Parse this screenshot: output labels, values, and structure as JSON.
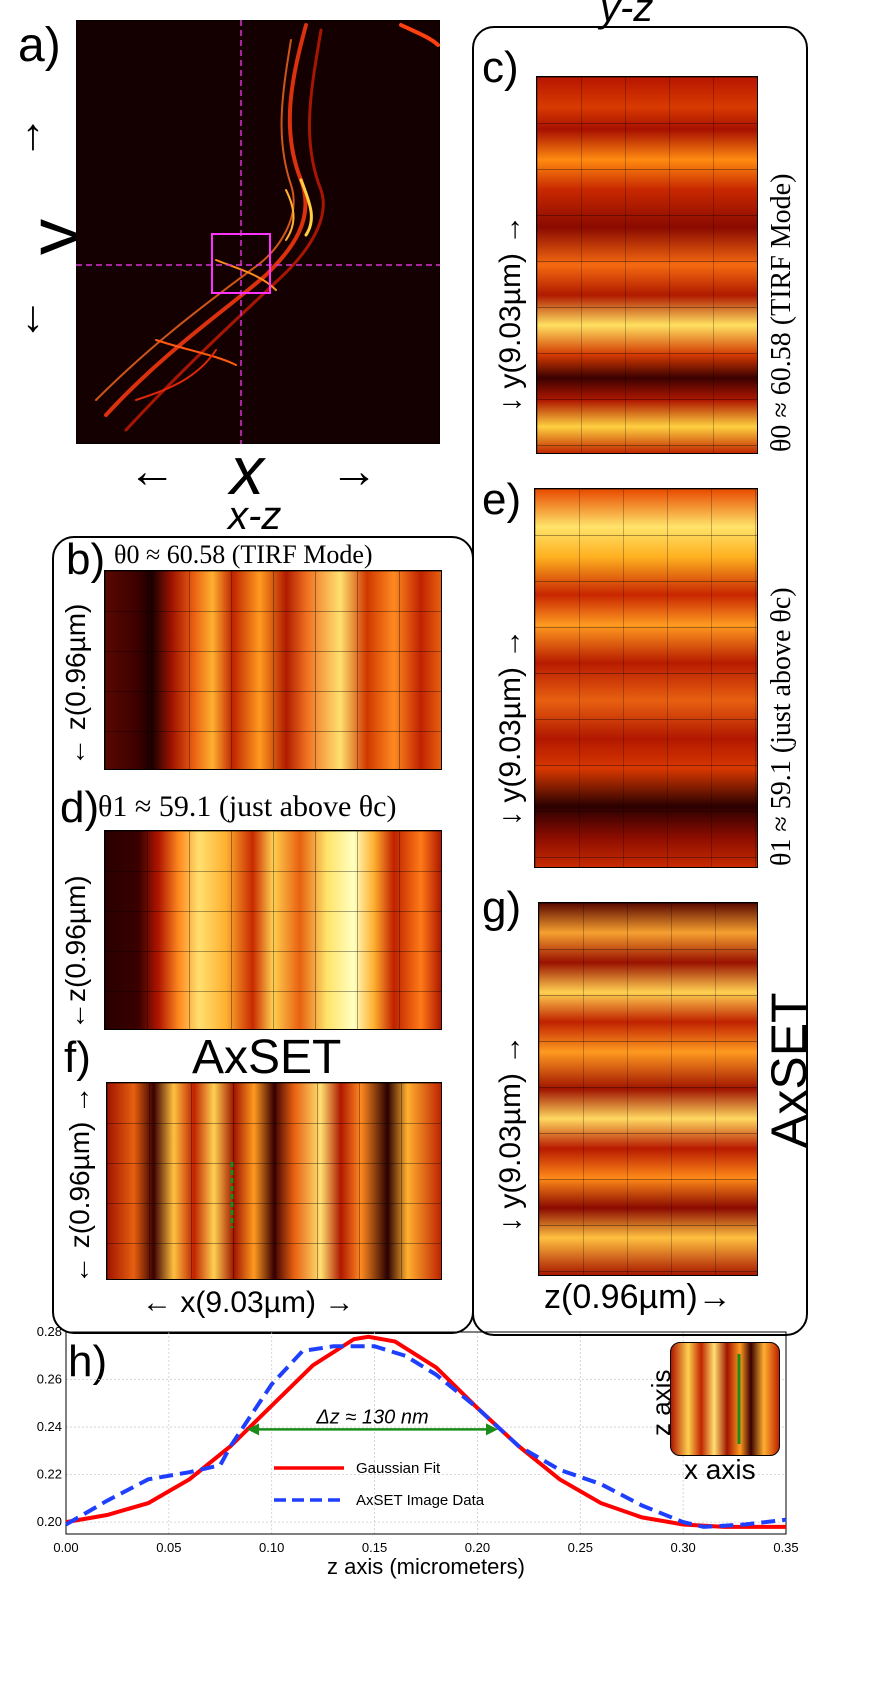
{
  "panel_a": {
    "letter": "a)",
    "x_axis_label": "x",
    "y_axis_label": "y",
    "arrow_left": "←",
    "arrow_right": "→",
    "arrow_up": "↑",
    "arrow_down": "↓"
  },
  "xz_group": {
    "title": "x-z"
  },
  "yz_group": {
    "title": "y-z"
  },
  "panel_b": {
    "letter": "b)",
    "caption": "θ0 ≈ 60.58 (TIRF Mode)",
    "axis_label": "← z(0.96µm)"
  },
  "panel_d": {
    "letter": "d)",
    "caption": "θ1 ≈ 59.1 (just above θc)",
    "axis_label": "←z(0.96µm)"
  },
  "panel_f": {
    "letter": "f)",
    "caption": "AxSET",
    "axis_label": "← z(0.96µm) →",
    "x_axis_label": "←  x(9.03µm) →"
  },
  "panel_c": {
    "letter": "c)",
    "caption": "θ0 ≈ 60.58 (TIRF Mode)",
    "axis_label": "↓   y(9.03µm) →"
  },
  "panel_e": {
    "letter": "e)",
    "caption": "θ1 ≈ 59.1 (just above θc)",
    "axis_label": "↓   y(9.03µm) →"
  },
  "panel_g": {
    "letter": "g)",
    "caption": "AxSET",
    "axis_label": "↓   y(9.03µm) →",
    "x_axis_label": "z(0.96µm)→"
  },
  "panel_h": {
    "letter": "h)",
    "annotation": "Δz ≈ 130 nm",
    "inset_x_label": "x axis",
    "inset_z_label": "z axis"
  },
  "colors": {
    "gaussian": "#ff0000",
    "axset": "#1f3fff",
    "fwhm_arrow": "#1a8c1a",
    "crosshair": "#d633d6",
    "heatmap_dark": "#1a0000",
    "heatmap_light": "#ffff99"
  },
  "chart_data": {
    "type": "line",
    "xlabel": "z axis (micrometers)",
    "ylabel": "",
    "xlim": [
      0.0,
      0.35
    ],
    "ylim": [
      0.195,
      0.28
    ],
    "xticks": [
      "0.00",
      "0.05",
      "0.10",
      "0.15",
      "0.20",
      "0.25",
      "0.30",
      "0.35"
    ],
    "yticks": [
      "0.20",
      "0.22",
      "0.24",
      "0.26",
      "0.28"
    ],
    "grid": true,
    "legend_position": "bottom-center",
    "series": [
      {
        "name": "Gaussian Fit",
        "style": "solid",
        "x": [
          0.0,
          0.02,
          0.04,
          0.06,
          0.08,
          0.1,
          0.12,
          0.14,
          0.147,
          0.16,
          0.18,
          0.2,
          0.22,
          0.24,
          0.26,
          0.28,
          0.3,
          0.32,
          0.35
        ],
        "y": [
          0.2,
          0.203,
          0.208,
          0.218,
          0.232,
          0.249,
          0.266,
          0.277,
          0.278,
          0.276,
          0.265,
          0.248,
          0.232,
          0.218,
          0.208,
          0.202,
          0.199,
          0.198,
          0.198
        ]
      },
      {
        "name": "AxSET Image Data",
        "style": "dashed",
        "x": [
          0.0,
          0.02,
          0.04,
          0.06,
          0.075,
          0.08,
          0.09,
          0.1,
          0.115,
          0.13,
          0.15,
          0.165,
          0.18,
          0.2,
          0.22,
          0.24,
          0.26,
          0.28,
          0.3,
          0.31,
          0.33,
          0.35
        ],
        "y": [
          0.199,
          0.209,
          0.218,
          0.221,
          0.224,
          0.232,
          0.245,
          0.258,
          0.272,
          0.274,
          0.274,
          0.27,
          0.262,
          0.248,
          0.232,
          0.222,
          0.216,
          0.207,
          0.2,
          0.198,
          0.199,
          0.201
        ]
      }
    ],
    "annotation": {
      "text": "Δz ≈ 130 nm",
      "x_from": 0.088,
      "x_to": 0.21,
      "y": 0.239
    }
  }
}
